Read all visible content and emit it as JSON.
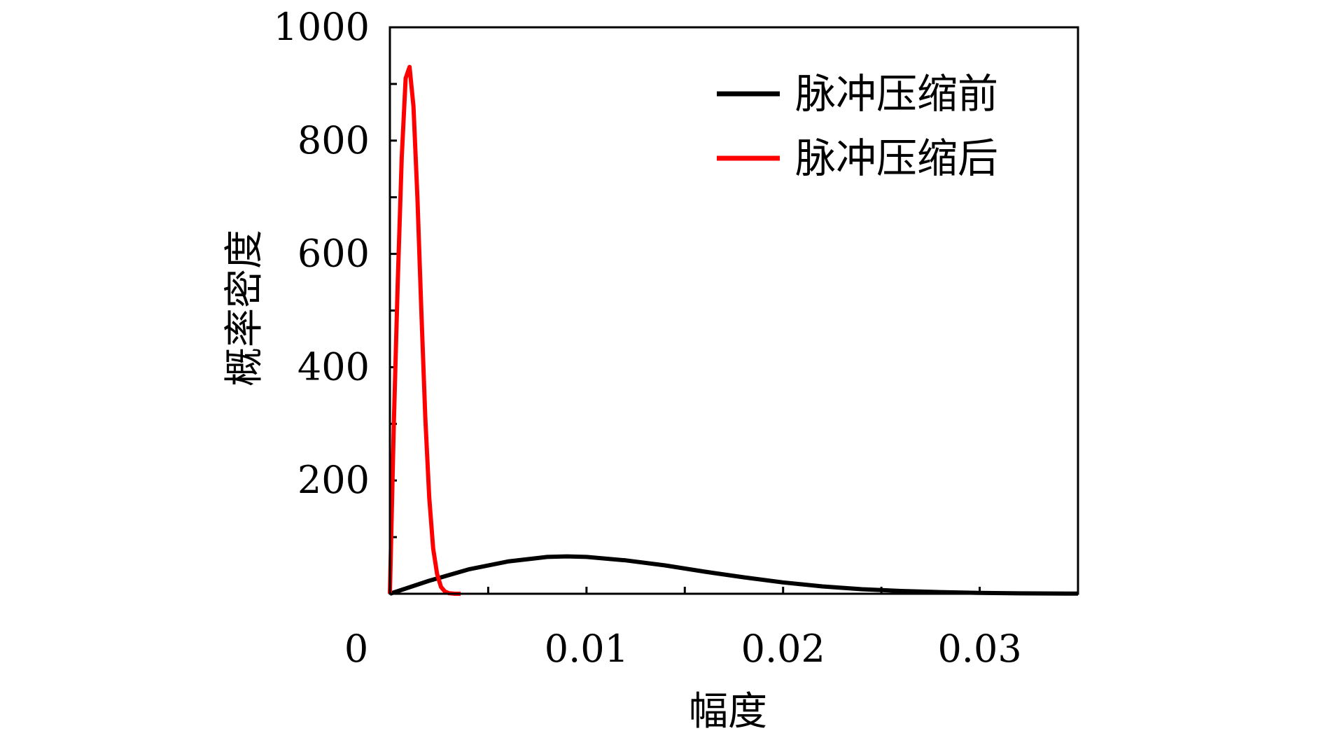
{
  "chart_data": {
    "type": "line",
    "title": "",
    "xlabel": "幅度",
    "ylabel": "概率密度",
    "xlim": [
      0,
      0.035
    ],
    "ylim": [
      0,
      1000
    ],
    "x_ticks": [
      0,
      0.01,
      0.02,
      0.03
    ],
    "x_tick_labels": [
      "0",
      "0.01",
      "0.02",
      "0.03"
    ],
    "y_ticks": [
      200,
      400,
      600,
      800,
      1000
    ],
    "y_tick_labels": [
      "200",
      "400",
      "600",
      "800",
      "1000"
    ],
    "grid": false,
    "legend_position": "top-right",
    "series": [
      {
        "name": "脉冲压缩前",
        "color": "#000000",
        "x": [
          0,
          0.002,
          0.004,
          0.006,
          0.008,
          0.009,
          0.01,
          0.012,
          0.014,
          0.016,
          0.018,
          0.02,
          0.022,
          0.024,
          0.026,
          0.028,
          0.03,
          0.032,
          0.035
        ],
        "y": [
          0,
          23,
          43,
          57,
          65,
          66,
          65,
          59,
          50,
          39,
          29,
          20,
          13,
          8,
          5,
          3,
          1.5,
          0.8,
          0.2
        ]
      },
      {
        "name": "脉冲压缩后",
        "color": "#ff0000",
        "x": [
          0,
          0.0002,
          0.0004,
          0.0006,
          0.0008,
          0.001,
          0.0012,
          0.0014,
          0.0016,
          0.0018,
          0.002,
          0.0022,
          0.0024,
          0.0026,
          0.0028,
          0.003,
          0.0033,
          0.0036
        ],
        "y": [
          0,
          300,
          550,
          770,
          910,
          930,
          860,
          700,
          500,
          310,
          170,
          80,
          35,
          12,
          4,
          1,
          0,
          0
        ]
      }
    ]
  }
}
